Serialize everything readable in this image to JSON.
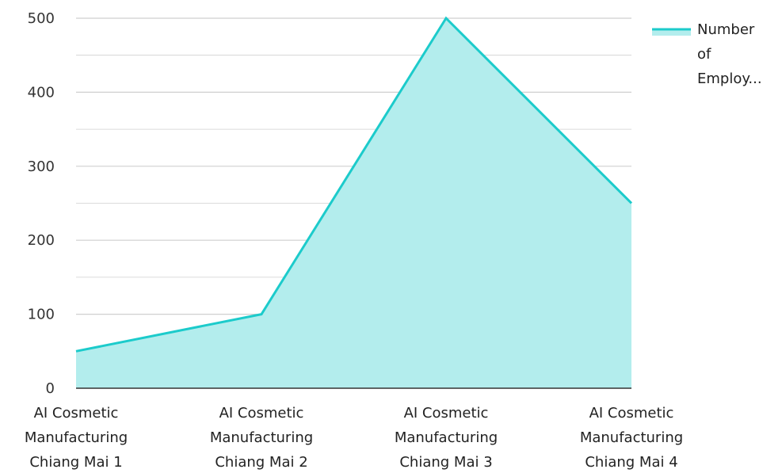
{
  "chart_data": {
    "type": "area",
    "categories": [
      "AI Cosmetic Manufacturing Chiang Mai 1",
      "AI Cosmetic Manufacturing Chiang Mai 2",
      "AI Cosmetic Manufacturing Chiang Mai 3",
      "AI Cosmetic Manufacturing Chiang Mai 4"
    ],
    "category_lines": [
      [
        "AI Cosmetic",
        "Manufacturing",
        "Chiang Mai 1"
      ],
      [
        "AI Cosmetic",
        "Manufacturing",
        "Chiang Mai 2"
      ],
      [
        "AI Cosmetic",
        "Manufacturing",
        "Chiang Mai 3"
      ],
      [
        "AI Cosmetic",
        "Manufacturing",
        "Chiang Mai 4"
      ]
    ],
    "series": [
      {
        "name": "Number of Employ...",
        "values": [
          50,
          100,
          500,
          250
        ]
      }
    ],
    "legend_lines": [
      "Number",
      "of",
      "Employ..."
    ],
    "ylim": [
      0,
      500
    ],
    "yticks": [
      0,
      100,
      200,
      300,
      400,
      500
    ],
    "grid": true,
    "legend_position": "top-right",
    "colors": {
      "line": "#1ccbcb",
      "fill": "#b3eded",
      "grid": "#cfcfcf",
      "axis": "#333333"
    }
  }
}
